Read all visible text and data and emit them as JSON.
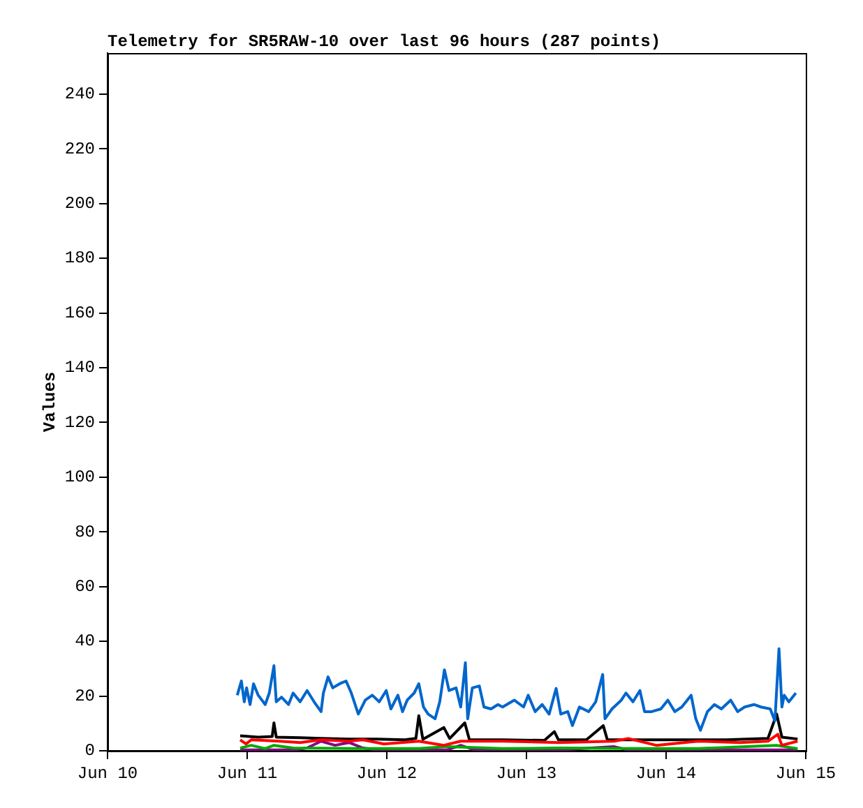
{
  "chart_data": {
    "type": "line",
    "title": "Telemetry for SR5RAW-10 over last 96 hours (287 points)",
    "ylabel": "Values",
    "xlim": [
      "--06-10",
      "--06-15"
    ],
    "xticks": [
      {
        "value": "--06-10",
        "label": "Jun 10"
      },
      {
        "value": "--06-11",
        "label": "Jun 11"
      },
      {
        "value": "--06-12",
        "label": "Jun 12"
      },
      {
        "value": "--06-13",
        "label": "Jun 13"
      },
      {
        "value": "--06-14",
        "label": "Jun 14"
      },
      {
        "value": "--06-15",
        "label": "Jun 15"
      }
    ],
    "ylim": [
      0,
      255
    ],
    "yticks": [
      0,
      20,
      40,
      60,
      80,
      100,
      120,
      140,
      160,
      180,
      200,
      220,
      240
    ],
    "grid": false,
    "legend": false,
    "marker": "none",
    "line_style": "solid",
    "series": [
      {
        "color": "#0066cc",
        "x": [
          "--06-10T22:18",
          "--06-10T23:00",
          "--06-10T23:30",
          "--06-10T23:54",
          "--06-11T00:30",
          "--06-11T01:06",
          "--06-11T01:54",
          "--06-11T03:06",
          "--06-11T03:48",
          "--06-11T04:36",
          "--06-11T05:00",
          "--06-11T05:54",
          "--06-11T07:06",
          "--06-11T07:54",
          "--06-11T09:06",
          "--06-11T10:18",
          "--06-11T11:30",
          "--06-11T12:42",
          "--06-11T13:06",
          "--06-11T13:54",
          "--06-11T14:42",
          "--06-11T15:54",
          "--06-11T17:00",
          "--06-11T17:54",
          "--06-11T19:06",
          "--06-11T20:18",
          "--06-11T21:30",
          "--06-11T22:42",
          "--06-11T23:54",
          "--06-12T00:42",
          "--06-12T01:54",
          "--06-12T02:42",
          "--06-12T03:30",
          "--06-12T04:42",
          "--06-12T05:30",
          "--06-12T06:18",
          "--06-12T07:06",
          "--06-12T08:18",
          "--06-12T09:06",
          "--06-12T09:54",
          "--06-12T10:42",
          "--06-12T11:54",
          "--06-12T12:42",
          "--06-12T13:30",
          "--06-12T13:54",
          "--06-12T14:42",
          "--06-12T15:54",
          "--06-12T16:42",
          "--06-12T17:54",
          "--06-12T19:06",
          "--06-12T19:54",
          "--06-12T21:54",
          "--06-12T23:30",
          "--06-13T00:18",
          "--06-13T01:30",
          "--06-13T02:42",
          "--06-13T03:54",
          "--06-13T05:06",
          "--06-13T05:54",
          "--06-13T07:06",
          "--06-13T07:54",
          "--06-13T09:06",
          "--06-13T10:42",
          "--06-13T11:54",
          "--06-13T13:06",
          "--06-13T13:30",
          "--06-13T14:42",
          "--06-13T16:18",
          "--06-13T17:06",
          "--06-13T18:18",
          "--06-13T19:30",
          "--06-13T20:18",
          "--06-13T21:30",
          "--06-13T23:06",
          "--06-14T00:18",
          "--06-14T01:30",
          "--06-14T02:42",
          "--06-14T04:18",
          "--06-14T05:06",
          "--06-14T05:54",
          "--06-14T07:06",
          "--06-14T08:18",
          "--06-14T09:30",
          "--06-14T11:06",
          "--06-14T12:18",
          "--06-14T13:30",
          "--06-14T15:06",
          "--06-14T16:18",
          "--06-14T17:54",
          "--06-14T18:42",
          "--06-14T19:24",
          "--06-14T19:54",
          "--06-14T20:18",
          "--06-14T21:06",
          "--06-14T22:18"
        ],
        "values": [
          20.3,
          25.5,
          17.9,
          23,
          16.9,
          24.5,
          20.3,
          16.9,
          21.1,
          31.1,
          17.9,
          19.6,
          16.9,
          21.1,
          17.9,
          22,
          17.9,
          14.3,
          21.1,
          27,
          23,
          24.5,
          25.5,
          21.1,
          13.4,
          18.5,
          20.3,
          17.9,
          22,
          15.3,
          20.3,
          14.3,
          18.5,
          21.1,
          24.5,
          16,
          13.4,
          11.7,
          17.9,
          29.6,
          22,
          23,
          16,
          32.2,
          11.7,
          23,
          23.7,
          16,
          15.3,
          16.9,
          16,
          18.5,
          16,
          20.3,
          14.3,
          16.9,
          13.4,
          22.8,
          13.4,
          14.3,
          9.2,
          16,
          14.3,
          17.9,
          27.9,
          11.7,
          15.3,
          18.5,
          21.1,
          17.9,
          22,
          14.3,
          14.3,
          15.3,
          18.5,
          14.3,
          16,
          20.3,
          11.7,
          7.5,
          14.3,
          16.9,
          15.3,
          18.5,
          14.3,
          16,
          16.9,
          16,
          15.3,
          10.9,
          37.3,
          16,
          20.3,
          17.9,
          21.1
        ]
      },
      {
        "color": "#ff0000",
        "x": [
          "--06-10T22:48",
          "--06-10T23:48",
          "--06-11T00:42",
          "--06-11T05:30",
          "--06-11T09:06",
          "--06-11T12:42",
          "--06-11T17:30",
          "--06-11T19:54",
          "--06-11T23:30",
          "--06-12T05:30",
          "--06-12T09:48",
          "--06-12T12:42",
          "--06-12T19:54",
          "--06-13T05:30",
          "--06-13T15:06",
          "--06-13T17:30",
          "--06-13T22:18",
          "--06-14T05:30",
          "--06-14T12:42",
          "--06-14T17:30",
          "--06-14T19:12",
          "--06-14T19:54",
          "--06-14T22:36"
        ],
        "values": [
          4,
          2.5,
          4,
          3.5,
          3,
          4,
          3.5,
          4,
          2.5,
          3.5,
          2,
          3.5,
          3.5,
          3,
          3.5,
          4.5,
          2,
          3.5,
          3,
          3.5,
          6,
          2,
          3.5
        ]
      },
      {
        "color": "#00aa00",
        "x": [
          "--06-10T22:48",
          "--06-11T00:42",
          "--06-11T03:06",
          "--06-11T04:36",
          "--06-11T07:54",
          "--06-11T19:54",
          "--06-12T05:30",
          "--06-12T10:18",
          "--06-12T19:54",
          "--06-13T05:30",
          "--06-13T17:30",
          "--06-14T05:30",
          "--06-14T19:00",
          "--06-14T22:36"
        ],
        "values": [
          1,
          2,
          0.8,
          2,
          1,
          0.8,
          0.8,
          1.5,
          0.8,
          1,
          0.8,
          0.8,
          2,
          0.8
        ]
      },
      {
        "color": "#880088",
        "x": [
          "--06-10T22:48",
          "--06-11T07:54",
          "--06-11T10:18",
          "--06-11T12:42",
          "--06-11T15:06",
          "--06-11T17:30",
          "--06-11T19:54",
          "--06-11T22:18",
          "--06-12T10:18",
          "--06-12T12:42",
          "--06-12T15:06",
          "--06-13T05:30",
          "--06-13T15:06",
          "--06-13T17:30",
          "--06-14T05:30",
          "--06-14T22:36"
        ],
        "values": [
          0.3,
          0.3,
          1,
          3.5,
          2,
          3,
          1,
          0.3,
          0.3,
          2,
          0.3,
          0.3,
          1.5,
          0.3,
          0.3,
          0.3
        ]
      },
      {
        "color": "#000000",
        "x": [
          "--06-10T22:48",
          "--06-11T01:54",
          "--06-11T04:18",
          "--06-11T04:36",
          "--06-11T05:00",
          "--06-11T09:06",
          "--06-11T12:42",
          "--06-11T17:30",
          "--06-11T22:18",
          "--06-12T03:06",
          "--06-12T05:00",
          "--06-12T05:30",
          "--06-12T06:12",
          "--06-12T09:48",
          "--06-12T10:48",
          "--06-12T13:24",
          "--06-12T14:12",
          "--06-12T19:54",
          "--06-13T03:06",
          "--06-13T04:48",
          "--06-13T05:30",
          "--06-13T10:18",
          "--06-13T13:12",
          "--06-13T13:54",
          "--06-13T19:54",
          "--06-14T03:06",
          "--06-14T10:18",
          "--06-14T17:30",
          "--06-14T19:00",
          "--06-14T19:54",
          "--06-14T22:36"
        ],
        "values": [
          5.5,
          5,
          5.2,
          10.2,
          5,
          4.8,
          4.5,
          4.3,
          4.3,
          4,
          4.5,
          12.8,
          4.2,
          8.5,
          4.5,
          10.2,
          4,
          4,
          3.8,
          7,
          4,
          4,
          9.2,
          4,
          4,
          4,
          4,
          4.5,
          13.4,
          5,
          4.3
        ]
      }
    ]
  }
}
